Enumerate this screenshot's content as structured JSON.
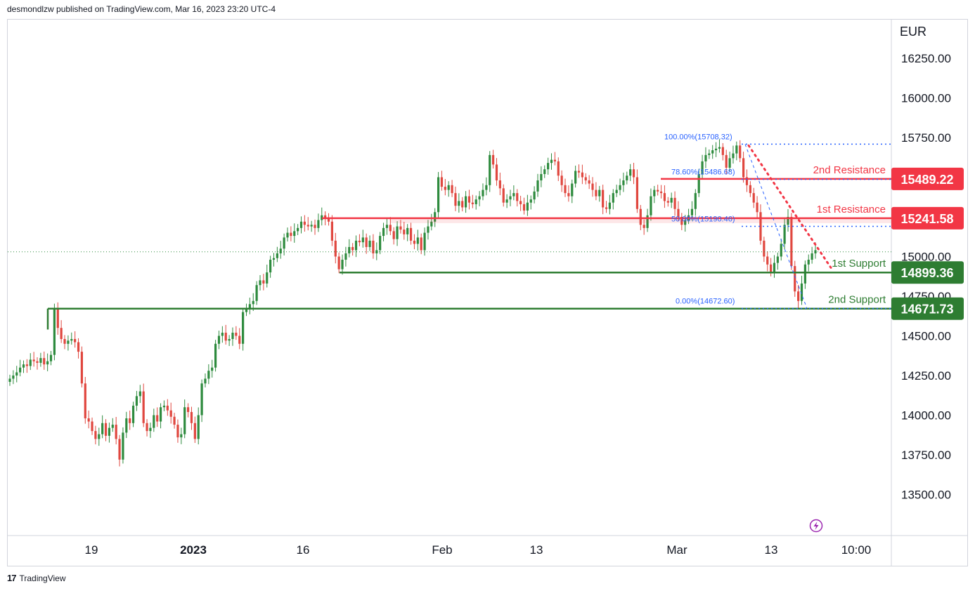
{
  "header": {
    "publisher_text": "desmondlzw published on TradingView.com, Mar 16, 2023 23:20 UTC-4"
  },
  "footer": {
    "brand": "TradingView",
    "logo_text": "17"
  },
  "colors": {
    "up": "#26a69a",
    "up_candle": "#2e8b3e",
    "down_candle": "#e0473f",
    "resistance": "#f23645",
    "support": "#2e7d32",
    "fib": "#2962ff",
    "grid": "#e0e3eb",
    "axis_text": "#131722",
    "lightning": "#9c27b0"
  },
  "chart_data": {
    "type": "candlestick",
    "currency_label": "EUR",
    "y_ticks": [
      16250,
      16000,
      15750,
      15000,
      14750,
      14500,
      14250,
      14000,
      13750,
      13500
    ],
    "y_tick_labels": [
      "16250.00",
      "16000.00",
      "15750.00",
      "15000.00",
      "14750.00",
      "14500.00",
      "14250.00",
      "14000.00",
      "13750.00",
      "13500.00"
    ],
    "ylim": [
      13250,
      16500
    ],
    "x_tick_labels": [
      {
        "label": "19",
        "bold": false
      },
      {
        "label": "2023",
        "bold": true
      },
      {
        "label": "16",
        "bold": false
      },
      {
        "label": "Feb",
        "bold": false
      },
      {
        "label": "13",
        "bold": false
      },
      {
        "label": "Mar",
        "bold": false
      },
      {
        "label": "13",
        "bold": false
      },
      {
        "label": "10:00",
        "bold": false
      }
    ],
    "levels": [
      {
        "name": "2nd Resistance",
        "value": 15489.22,
        "label": "15489.22",
        "kind": "resistance"
      },
      {
        "name": "1st Resistance",
        "value": 15241.58,
        "label": "15241.58",
        "kind": "resistance"
      },
      {
        "name": "1st Support",
        "value": 14899.36,
        "label": "14899.36",
        "kind": "support"
      },
      {
        "name": "2nd Support",
        "value": 14671.73,
        "label": "14671.73",
        "kind": "support"
      }
    ],
    "fib_levels": [
      {
        "label": "100.00%(15708.32)",
        "value": 15708.32
      },
      {
        "label": "78.60%(15486.68)",
        "value": 15486.68
      },
      {
        "label": "50.00%(15190.46)",
        "value": 15190.46
      },
      {
        "label": "0.00%(14672.60)",
        "value": 14672.6
      }
    ],
    "last_price": 15030,
    "closes": [
      14230,
      14250,
      14270,
      14300,
      14320,
      14310,
      14350,
      14340,
      14330,
      14360,
      14320,
      14340,
      14380,
      14670,
      14550,
      14480,
      14450,
      14470,
      14480,
      14460,
      14400,
      14200,
      13980,
      13960,
      13900,
      13850,
      13880,
      13950,
      13870,
      13920,
      13940,
      13850,
      13720,
      13890,
      13980,
      13950,
      14060,
      14120,
      14150,
      13950,
      13900,
      13920,
      14000,
      13960,
      14050,
      14060,
      14030,
      13990,
      13940,
      13860,
      13880,
      14050,
      14020,
      13950,
      13850,
      14000,
      14200,
      14230,
      14280,
      14300,
      14450,
      14500,
      14520,
      14470,
      14480,
      14520,
      14500,
      14450,
      14650,
      14670,
      14700,
      14720,
      14820,
      14850,
      14830,
      14900,
      14980,
      14990,
      15020,
      15050,
      15120,
      15150,
      15130,
      15160,
      15180,
      15220,
      15200,
      15190,
      15200,
      15180,
      15230,
      15260,
      15240,
      15220,
      15100,
      15000,
      14920,
      14980,
      15020,
      15060,
      15040,
      15100,
      15090,
      15120,
      15060,
      15100,
      15020,
      15040,
      15130,
      15180,
      15200,
      15160,
      15110,
      15190,
      15170,
      15140,
      15180,
      15100,
      15080,
      15120,
      15040,
      15150,
      15190,
      15220,
      15280,
      15500,
      15440,
      15420,
      15450,
      15400,
      15320,
      15350,
      15310,
      15380,
      15340,
      15330,
      15360,
      15380,
      15420,
      15450,
      15640,
      15580,
      15480,
      15430,
      15340,
      15360,
      15380,
      15400,
      15350,
      15330,
      15290,
      15340,
      15360,
      15410,
      15480,
      15520,
      15550,
      15590,
      15610,
      15600,
      15510,
      15450,
      15400,
      15380,
      15460,
      15540,
      15530,
      15500,
      15480,
      15460,
      15420,
      15380,
      15420,
      15310,
      15300,
      15340,
      15400,
      15420,
      15450,
      15480,
      15510,
      15550,
      15500,
      15300,
      15200,
      15180,
      15260,
      15380,
      15420,
      15410,
      15400,
      15350,
      15340,
      15370,
      15300,
      15250,
      15200,
      15230,
      15260,
      15300,
      15400,
      15520,
      15600,
      15640,
      15650,
      15670,
      15680,
      15690,
      15640,
      15560,
      15620,
      15650,
      15700,
      15620,
      15500,
      15450,
      15400,
      15340,
      15280,
      15100,
      15000,
      14950,
      14900,
      14960,
      15000,
      15080,
      15200,
      15250,
      14940,
      14780,
      14720,
      14830,
      14950,
      14980,
      15020,
      15040
    ]
  }
}
